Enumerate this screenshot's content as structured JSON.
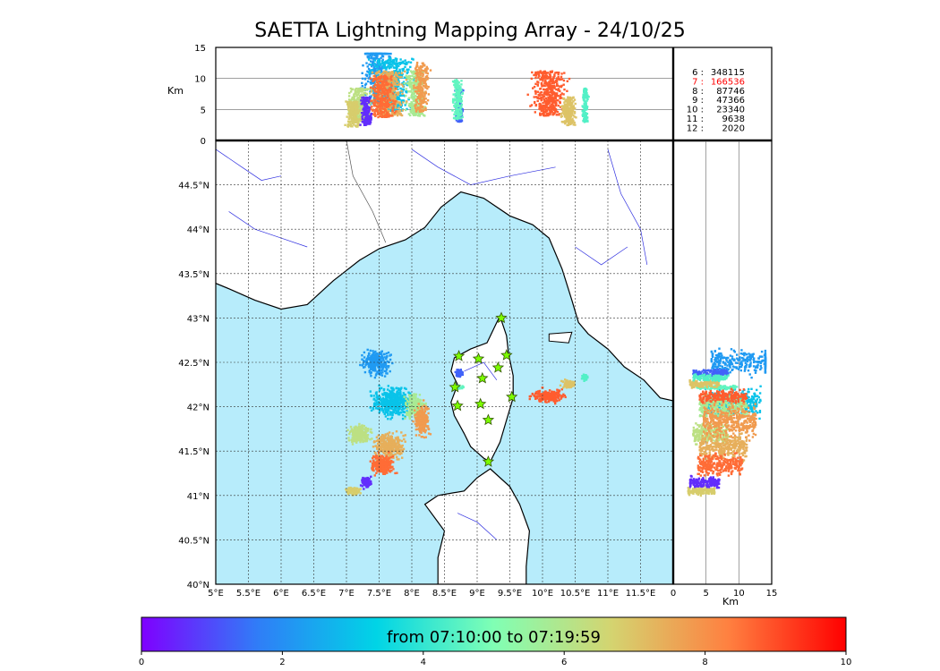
{
  "chart_data": {
    "type": "scatter",
    "title": "SAETTA Lightning Mapping Array - 24/10/25",
    "map": {
      "lon_range": [
        5.0,
        12.0
      ],
      "lat_range": [
        40.0,
        45.0
      ],
      "x_ticks": [
        "5°E",
        "5.5°E",
        "6°E",
        "6.5°E",
        "7°E",
        "7.5°E",
        "8°E",
        "8.5°E",
        "9°E",
        "9.5°E",
        "10°E",
        "10.5°E",
        "11°E",
        "11.5°E"
      ],
      "y_ticks": [
        "40°N",
        "40.5°N",
        "41°N",
        "41.5°N",
        "42°N",
        "42.5°N",
        "43°N",
        "43.5°N",
        "44°N",
        "44.5°N"
      ],
      "grid": true,
      "sea_color": "#b7ecfb",
      "land_color": "#ffffff",
      "station_color": "#7cfc00"
    },
    "altitude_axis": {
      "label": "Km",
      "range": [
        0,
        15
      ],
      "ticks": [
        "0",
        "5",
        "10",
        "15"
      ]
    },
    "counts": [
      {
        "label": "6 :",
        "value": "348115",
        "color": "#000000"
      },
      {
        "label": "7 :",
        "value": "166536",
        "color": "#ff0000"
      },
      {
        "label": "8 :",
        "value": "87746",
        "color": "#000000"
      },
      {
        "label": "9 :",
        "value": "47366",
        "color": "#000000"
      },
      {
        "label": "10 :",
        "value": "23340",
        "color": "#000000"
      },
      {
        "label": "11 :",
        "value": "9638",
        "color": "#000000"
      },
      {
        "label": "12 :",
        "value": "2020",
        "color": "#000000"
      }
    ],
    "colorbar": {
      "label": "from 07:10:00 to 07:19:59",
      "range": [
        0,
        10
      ],
      "ticks": [
        "0",
        "2",
        "4",
        "6",
        "8",
        "10"
      ],
      "colormap": [
        "#7f00ff",
        "#2f7ef7",
        "#00d4e6",
        "#80ffb4",
        "#d4d470",
        "#ff8040",
        "#ff0000"
      ]
    },
    "stations": [
      {
        "lon": 9.37,
        "lat": 43.0
      },
      {
        "lon": 8.72,
        "lat": 42.57
      },
      {
        "lon": 9.02,
        "lat": 42.54
      },
      {
        "lon": 9.45,
        "lat": 42.58
      },
      {
        "lon": 9.32,
        "lat": 42.44
      },
      {
        "lon": 9.08,
        "lat": 42.32
      },
      {
        "lon": 8.66,
        "lat": 42.22
      },
      {
        "lon": 9.53,
        "lat": 42.11
      },
      {
        "lon": 8.7,
        "lat": 42.01
      },
      {
        "lon": 9.05,
        "lat": 42.03
      },
      {
        "lon": 9.17,
        "lat": 41.85
      },
      {
        "lon": 9.17,
        "lat": 41.38
      }
    ],
    "cells": [
      {
        "lon": 7.45,
        "lat": 42.5,
        "rx": 0.28,
        "ry": 0.18,
        "alt": 11.5,
        "t": 2.2
      },
      {
        "lon": 7.7,
        "lat": 42.05,
        "rx": 0.4,
        "ry": 0.22,
        "alt": 9.5,
        "t": 3.0
      },
      {
        "lon": 8.05,
        "lat": 42.0,
        "rx": 0.2,
        "ry": 0.18,
        "alt": 8.0,
        "t": 5.8
      },
      {
        "lon": 7.2,
        "lat": 41.7,
        "rx": 0.22,
        "ry": 0.15,
        "alt": 6.0,
        "t": 6.2
      },
      {
        "lon": 7.65,
        "lat": 41.55,
        "rx": 0.3,
        "ry": 0.2,
        "alt": 8.0,
        "t": 7.4
      },
      {
        "lon": 7.55,
        "lat": 41.35,
        "rx": 0.25,
        "ry": 0.16,
        "alt": 7.5,
        "t": 8.6
      },
      {
        "lon": 8.15,
        "lat": 41.85,
        "rx": 0.15,
        "ry": 0.25,
        "alt": 9.0,
        "t": 7.8
      },
      {
        "lon": 7.1,
        "lat": 41.05,
        "rx": 0.15,
        "ry": 0.06,
        "alt": 4.5,
        "t": 6.8
      },
      {
        "lon": 7.3,
        "lat": 41.15,
        "rx": 0.1,
        "ry": 0.08,
        "alt": 5.0,
        "t": 0.6
      },
      {
        "lon": 8.72,
        "lat": 42.38,
        "rx": 0.08,
        "ry": 0.06,
        "alt": 6.0,
        "t": 1.3
      },
      {
        "lon": 8.7,
        "lat": 42.22,
        "rx": 0.1,
        "ry": 0.03,
        "alt": 7.0,
        "t": 4.6
      },
      {
        "lon": 10.1,
        "lat": 42.12,
        "rx": 0.35,
        "ry": 0.1,
        "alt": 8.0,
        "t": 8.8
      },
      {
        "lon": 10.4,
        "lat": 42.26,
        "rx": 0.15,
        "ry": 0.06,
        "alt": 5.0,
        "t": 7.0
      },
      {
        "lon": 10.65,
        "lat": 42.33,
        "rx": 0.06,
        "ry": 0.05,
        "alt": 6.0,
        "t": 4.4
      }
    ]
  }
}
